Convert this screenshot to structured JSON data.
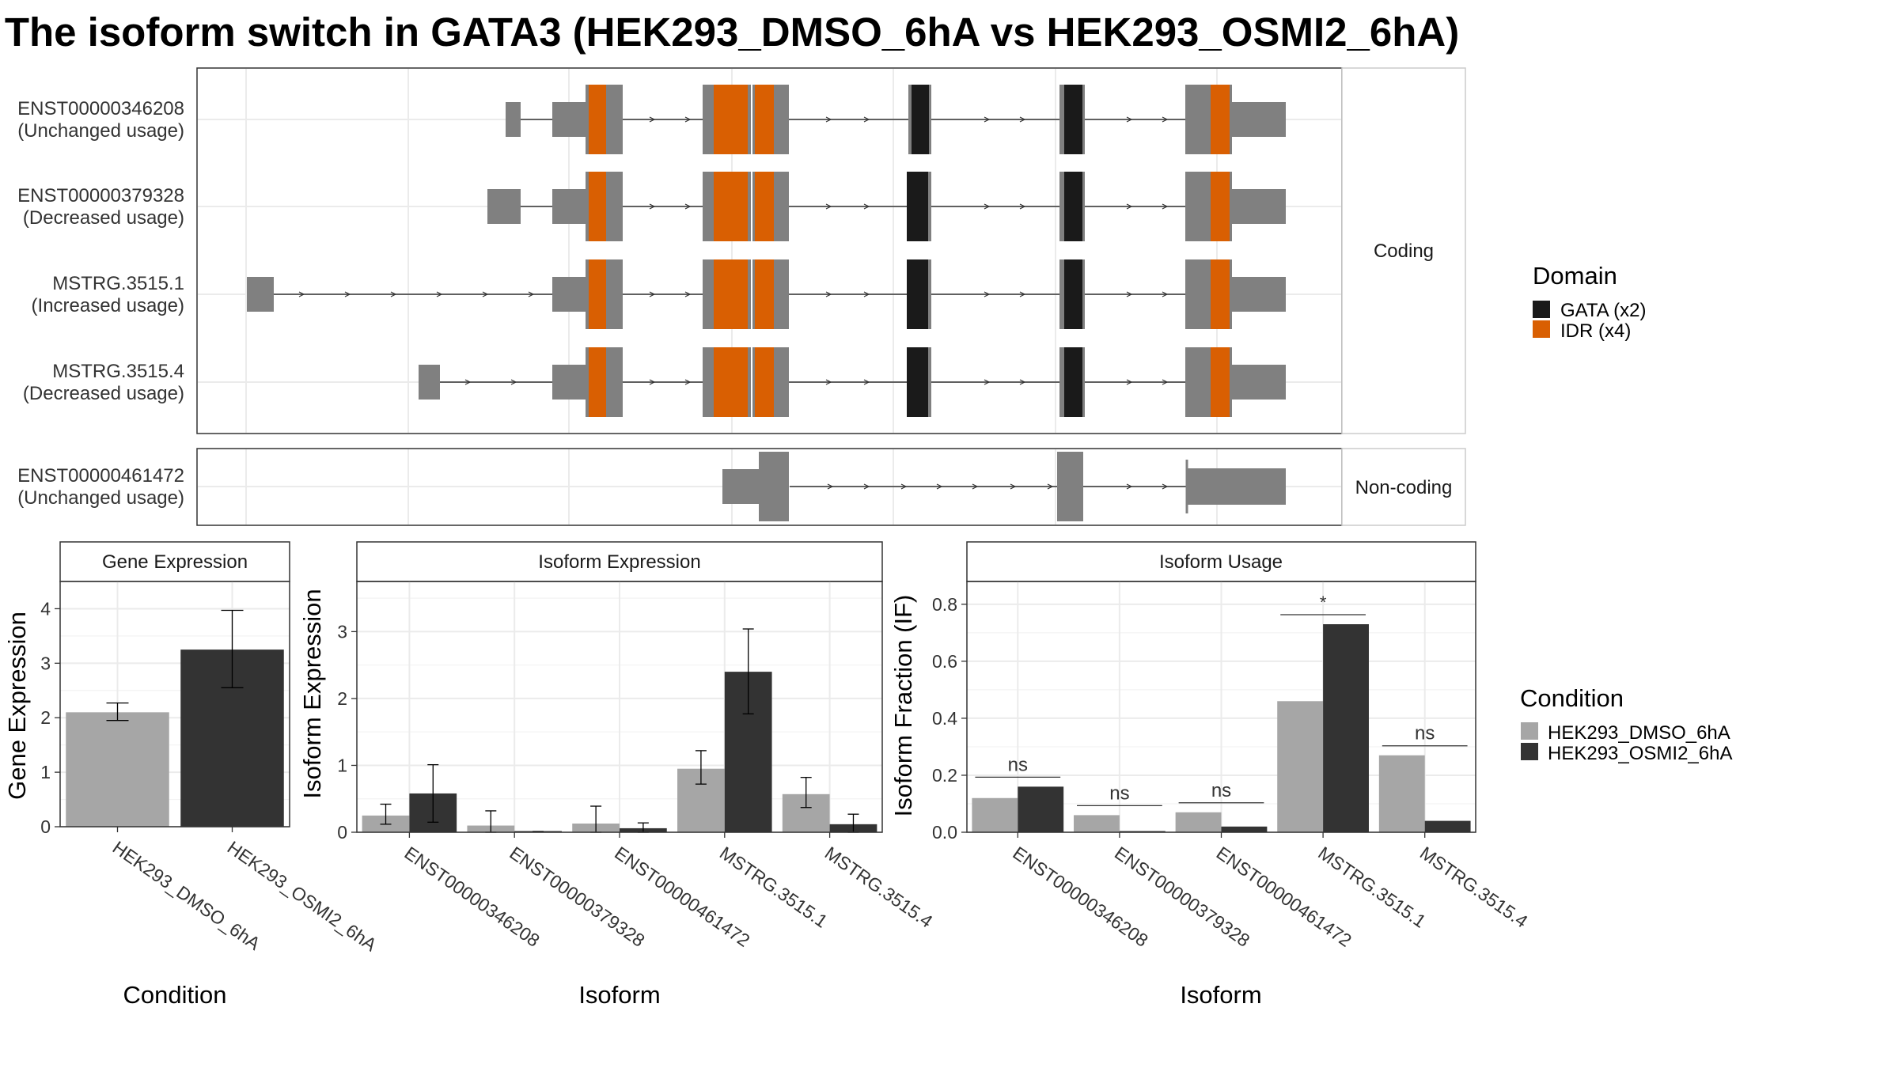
{
  "title": "The isoform switch in GATA3 (HEK293_DMSO_6hA vs HEK293_OSMI2_6hA)",
  "colors": {
    "exon": "#808080",
    "gata": "#1a1a1a",
    "idr": "#d95f02",
    "dmso": "#a6a6a6",
    "osmi2": "#333333",
    "grid": "#ebebeb"
  },
  "structure": {
    "coding_label": "Coding",
    "noncoding_label": "Non-coding",
    "transcripts": [
      {
        "id": "ENST00000346208",
        "usage": "(Unchanged usage)",
        "group": "coding"
      },
      {
        "id": "ENST00000379328",
        "usage": "(Decreased usage)",
        "group": "coding"
      },
      {
        "id": "MSTRG.3515.1",
        "usage": "(Increased usage)",
        "group": "coding"
      },
      {
        "id": "MSTRG.3515.4",
        "usage": "(Decreased usage)",
        "group": "coding"
      },
      {
        "id": "ENST00000461472",
        "usage": "(Unchanged usage)",
        "group": "noncoding"
      }
    ]
  },
  "domain_legend": {
    "title": "Domain",
    "items": [
      {
        "label": "GATA (x2)",
        "color": "#1a1a1a"
      },
      {
        "label": "IDR (x4)",
        "color": "#d95f02"
      }
    ]
  },
  "condition_legend": {
    "title": "Condition",
    "items": [
      {
        "label": "HEK293_DMSO_6hA",
        "color": "#a6a6a6"
      },
      {
        "label": "HEK293_OSMI2_6hA",
        "color": "#333333"
      }
    ]
  },
  "chart_data": [
    {
      "type": "bar",
      "panel_title": "Gene Expression",
      "xlabel": "Condition",
      "ylabel": "Gene Expression",
      "categories": [
        "HEK293_DMSO_6hA",
        "HEK293_OSMI2_6hA"
      ],
      "values": [
        2.1,
        3.25
      ],
      "errors": [
        [
          1.95,
          2.27
        ],
        [
          2.55,
          3.97
        ]
      ],
      "ylim": [
        0,
        4.5
      ],
      "yticks": [
        0,
        1,
        2,
        3,
        4
      ]
    },
    {
      "type": "bar",
      "panel_title": "Isoform Expression",
      "xlabel": "Isoform",
      "ylabel": "Isoform Expression",
      "categories": [
        "ENST00000346208",
        "ENST00000379328",
        "ENST00000461472",
        "MSTRG.3515.1",
        "MSTRG.3515.4"
      ],
      "series": [
        {
          "name": "HEK293_DMSO_6hA",
          "values": [
            0.25,
            0.1,
            0.13,
            0.95,
            0.57
          ],
          "errors": [
            [
              0.12,
              0.42
            ],
            [
              0.0,
              0.32
            ],
            [
              0.0,
              0.39
            ],
            [
              0.72,
              1.22
            ],
            [
              0.37,
              0.82
            ]
          ]
        },
        {
          "name": "HEK293_OSMI2_6hA",
          "values": [
            0.58,
            0.0,
            0.06,
            2.4,
            0.12
          ],
          "errors": [
            [
              0.15,
              1.01
            ],
            [
              0.0,
              0.0
            ],
            [
              0.0,
              0.14
            ],
            [
              1.77,
              3.04
            ],
            [
              0.0,
              0.27
            ]
          ]
        }
      ],
      "ylim": [
        0,
        3.75
      ],
      "yticks": [
        0,
        1,
        2,
        3
      ]
    },
    {
      "type": "bar",
      "panel_title": "Isoform Usage",
      "xlabel": "Isoform",
      "ylabel": "Isoform Fraction (IF)",
      "categories": [
        "ENST00000346208",
        "ENST00000379328",
        "ENST00000461472",
        "MSTRG.3515.1",
        "MSTRG.3515.4"
      ],
      "series": [
        {
          "name": "HEK293_DMSO_6hA",
          "values": [
            0.12,
            0.06,
            0.07,
            0.46,
            0.27
          ]
        },
        {
          "name": "HEK293_OSMI2_6hA",
          "values": [
            0.16,
            0.0,
            0.02,
            0.73,
            0.04
          ]
        }
      ],
      "significance": [
        "ns",
        "ns",
        "ns",
        "*",
        "ns"
      ],
      "ylim": [
        0,
        0.88
      ],
      "yticks": [
        0.0,
        0.2,
        0.4,
        0.6,
        0.8
      ],
      "ytick_labels": [
        "0.0",
        "0.2",
        "0.4",
        "0.6",
        "0.8"
      ]
    }
  ]
}
